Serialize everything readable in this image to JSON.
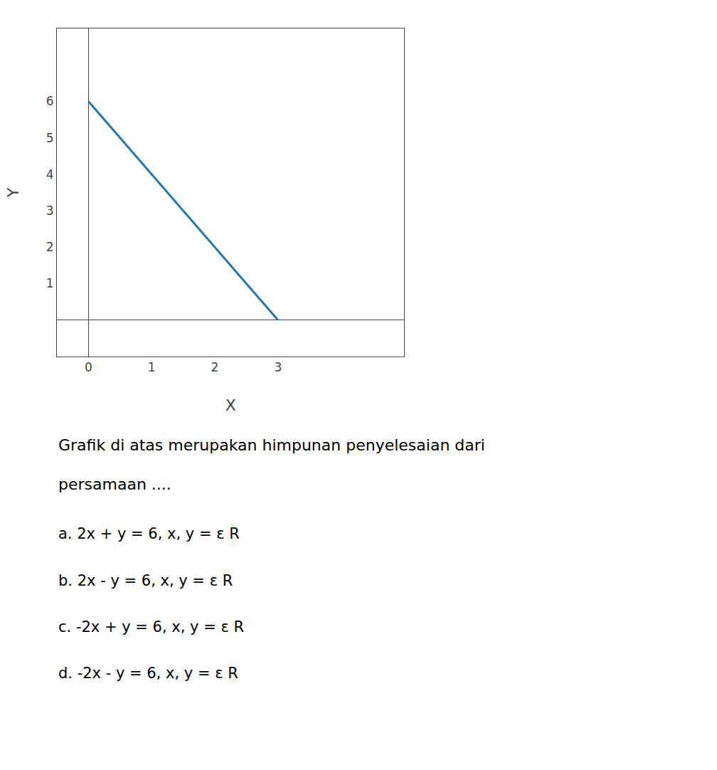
{
  "chart_data": {
    "type": "line",
    "title": "Grafik di atas merupakan himpunan penyelesaian dari",
    "subtitle": "persamaan ....",
    "x": [
      0,
      3
    ],
    "values": [
      6,
      0
    ],
    "x_label": "X",
    "y_label": "Y",
    "xlim": [
      -0.5,
      5.0
    ],
    "ylim": [
      -1.0,
      8.0
    ],
    "xticks": [
      0,
      1,
      2,
      3
    ],
    "yticks": [
      1,
      2,
      3,
      4,
      5,
      6
    ],
    "grid": false,
    "annotations": [
      "a. 2x + y = 6, x, y = ε R",
      "b. 2x - y = 6, x, y = ε R",
      "c. -2x + y = 6, x, y = ε R",
      "d. -2x - y = 6, x, y = ε R"
    ]
  }
}
